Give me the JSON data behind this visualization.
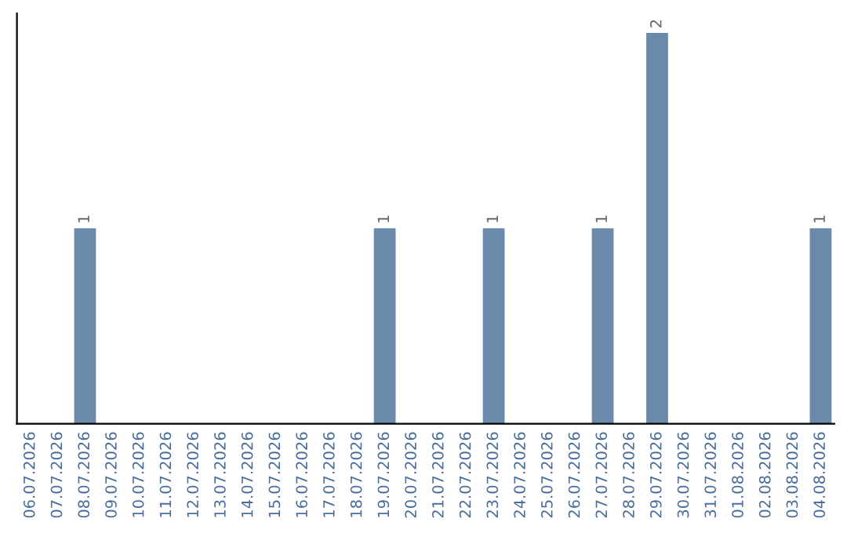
{
  "chart_data": {
    "type": "bar",
    "categories": [
      "06.07.2026",
      "07.07.2026",
      "08.07.2026",
      "09.07.2026",
      "10.07.2026",
      "11.07.2026",
      "12.07.2026",
      "13.07.2026",
      "14.07.2026",
      "15.07.2026",
      "16.07.2026",
      "17.07.2026",
      "18.07.2026",
      "19.07.2026",
      "20.07.2026",
      "21.07.2026",
      "22.07.2026",
      "23.07.2026",
      "24.07.2026",
      "25.07.2026",
      "26.07.2026",
      "27.07.2026",
      "28.07.2026",
      "29.07.2026",
      "30.07.2026",
      "31.07.2026",
      "01.08.2026",
      "02.08.2026",
      "03.08.2026",
      "04.08.2026"
    ],
    "values": [
      0,
      0,
      1,
      0,
      0,
      0,
      0,
      0,
      0,
      0,
      0,
      0,
      0,
      1,
      0,
      0,
      0,
      1,
      0,
      0,
      0,
      1,
      0,
      2,
      0,
      0,
      0,
      0,
      0,
      1
    ],
    "color": "#6a8aab",
    "value_labels": [
      null,
      null,
      "1",
      null,
      null,
      null,
      null,
      null,
      null,
      null,
      null,
      null,
      null,
      "1",
      null,
      null,
      null,
      "1",
      null,
      null,
      null,
      "1",
      null,
      "2",
      null,
      null,
      null,
      null,
      null,
      "1"
    ],
    "tick_labels": "x",
    "grid": false,
    "legend": false
  }
}
